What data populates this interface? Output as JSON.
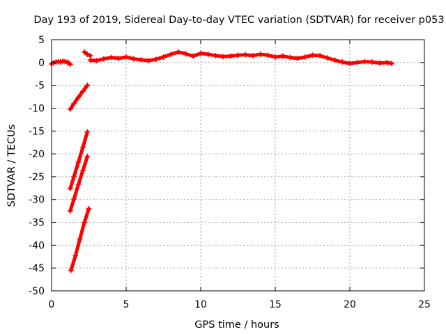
{
  "chart_data": {
    "type": "scatter",
    "title": "Day 193 of 2019, Sidereal Day-to-day VTEC variation (SDTVAR) for receiver p053",
    "xlabel": "GPS time / hours",
    "ylabel": "SDTVAR / TECUs",
    "xlim": [
      0,
      25
    ],
    "ylim": [
      -50,
      5
    ],
    "xticks": [
      0,
      5,
      10,
      15,
      20,
      25
    ],
    "yticks": [
      -50,
      -45,
      -40,
      -35,
      -30,
      -25,
      -20,
      -15,
      -10,
      -5,
      0,
      5
    ],
    "grid": true,
    "marker": "+",
    "color": "#ff0000",
    "series": [
      {
        "segments": [
          [
            [
              0.0,
              -0.3
            ],
            [
              0.15,
              0.0
            ],
            [
              0.3,
              0.1
            ],
            [
              0.45,
              0.2
            ],
            [
              0.6,
              0.15
            ],
            [
              0.75,
              0.3
            ],
            [
              0.9,
              0.2
            ],
            [
              1.05,
              0.05
            ],
            [
              1.15,
              -0.1
            ],
            [
              1.25,
              -0.4
            ]
          ],
          [
            [
              1.25,
              -10.2
            ],
            [
              1.5,
              -9.0
            ],
            [
              1.8,
              -7.6
            ],
            [
              2.1,
              -6.3
            ],
            [
              2.4,
              -5.0
            ]
          ],
          [
            [
              1.25,
              -27.6
            ],
            [
              1.5,
              -25.0
            ],
            [
              1.8,
              -21.8
            ],
            [
              2.1,
              -18.6
            ],
            [
              2.4,
              -15.2
            ]
          ],
          [
            [
              1.25,
              -32.5
            ],
            [
              1.5,
              -29.9
            ],
            [
              1.8,
              -26.7
            ],
            [
              2.1,
              -23.6
            ],
            [
              2.4,
              -20.6
            ]
          ],
          [
            [
              1.3,
              -45.5
            ],
            [
              1.6,
              -42.3
            ],
            [
              1.9,
              -38.6
            ],
            [
              2.2,
              -35.0
            ],
            [
              2.5,
              -32.0
            ]
          ],
          [
            [
              2.2,
              2.3
            ],
            [
              2.4,
              1.8
            ],
            [
              2.6,
              1.5
            ]
          ],
          [
            [
              2.6,
              0.5
            ],
            [
              3.0,
              0.4
            ],
            [
              3.5,
              0.8
            ],
            [
              4.0,
              1.1
            ],
            [
              4.5,
              0.9
            ],
            [
              5.0,
              1.2
            ],
            [
              5.5,
              0.8
            ],
            [
              6.0,
              0.6
            ],
            [
              6.5,
              0.4
            ],
            [
              7.0,
              0.7
            ],
            [
              7.5,
              1.2
            ],
            [
              8.0,
              1.8
            ],
            [
              8.5,
              2.3
            ],
            [
              9.0,
              1.9
            ],
            [
              9.5,
              1.4
            ],
            [
              10.0,
              2.0
            ],
            [
              10.5,
              1.8
            ],
            [
              11.0,
              1.5
            ],
            [
              11.5,
              1.3
            ],
            [
              12.0,
              1.4
            ],
            [
              12.5,
              1.6
            ],
            [
              13.0,
              1.7
            ],
            [
              13.5,
              1.5
            ],
            [
              14.0,
              1.8
            ],
            [
              14.5,
              1.6
            ],
            [
              15.0,
              1.2
            ],
            [
              15.5,
              1.4
            ],
            [
              16.0,
              1.1
            ],
            [
              16.5,
              0.9
            ],
            [
              17.0,
              1.2
            ],
            [
              17.5,
              1.6
            ],
            [
              18.0,
              1.5
            ],
            [
              18.5,
              1.0
            ],
            [
              19.0,
              0.5
            ],
            [
              19.5,
              0.1
            ],
            [
              20.0,
              -0.2
            ],
            [
              20.5,
              0.0
            ],
            [
              21.0,
              0.2
            ],
            [
              21.5,
              0.1
            ],
            [
              22.0,
              -0.1
            ],
            [
              22.5,
              0.0
            ],
            [
              22.8,
              -0.2
            ]
          ]
        ]
      }
    ]
  }
}
